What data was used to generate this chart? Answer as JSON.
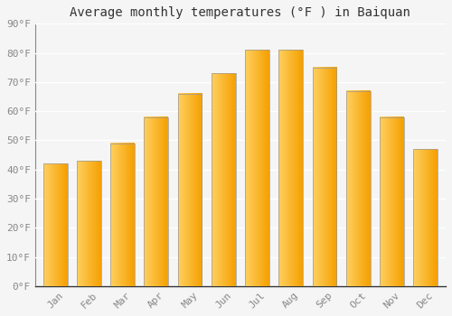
{
  "title": "Average monthly temperatures (°F ) in Baiquan",
  "months": [
    "Jan",
    "Feb",
    "Mar",
    "Apr",
    "May",
    "Jun",
    "Jul",
    "Aug",
    "Sep",
    "Oct",
    "Nov",
    "Dec"
  ],
  "values": [
    42,
    43,
    49,
    58,
    66,
    73,
    81,
    81,
    75,
    67,
    58,
    47
  ],
  "bar_color_left": "#FFD060",
  "bar_color_right": "#F5A000",
  "bar_outline_color": "#999999",
  "ylim": [
    0,
    90
  ],
  "yticks": [
    0,
    10,
    20,
    30,
    40,
    50,
    60,
    70,
    80,
    90
  ],
  "ytick_labels": [
    "0°F",
    "10°F",
    "20°F",
    "30°F",
    "40°F",
    "50°F",
    "60°F",
    "70°F",
    "80°F",
    "90°F"
  ],
  "background_color": "#f5f5f5",
  "grid_color": "#ffffff",
  "title_fontsize": 10,
  "tick_fontsize": 8,
  "font_family": "monospace",
  "bar_width": 0.72,
  "n_grad": 80
}
